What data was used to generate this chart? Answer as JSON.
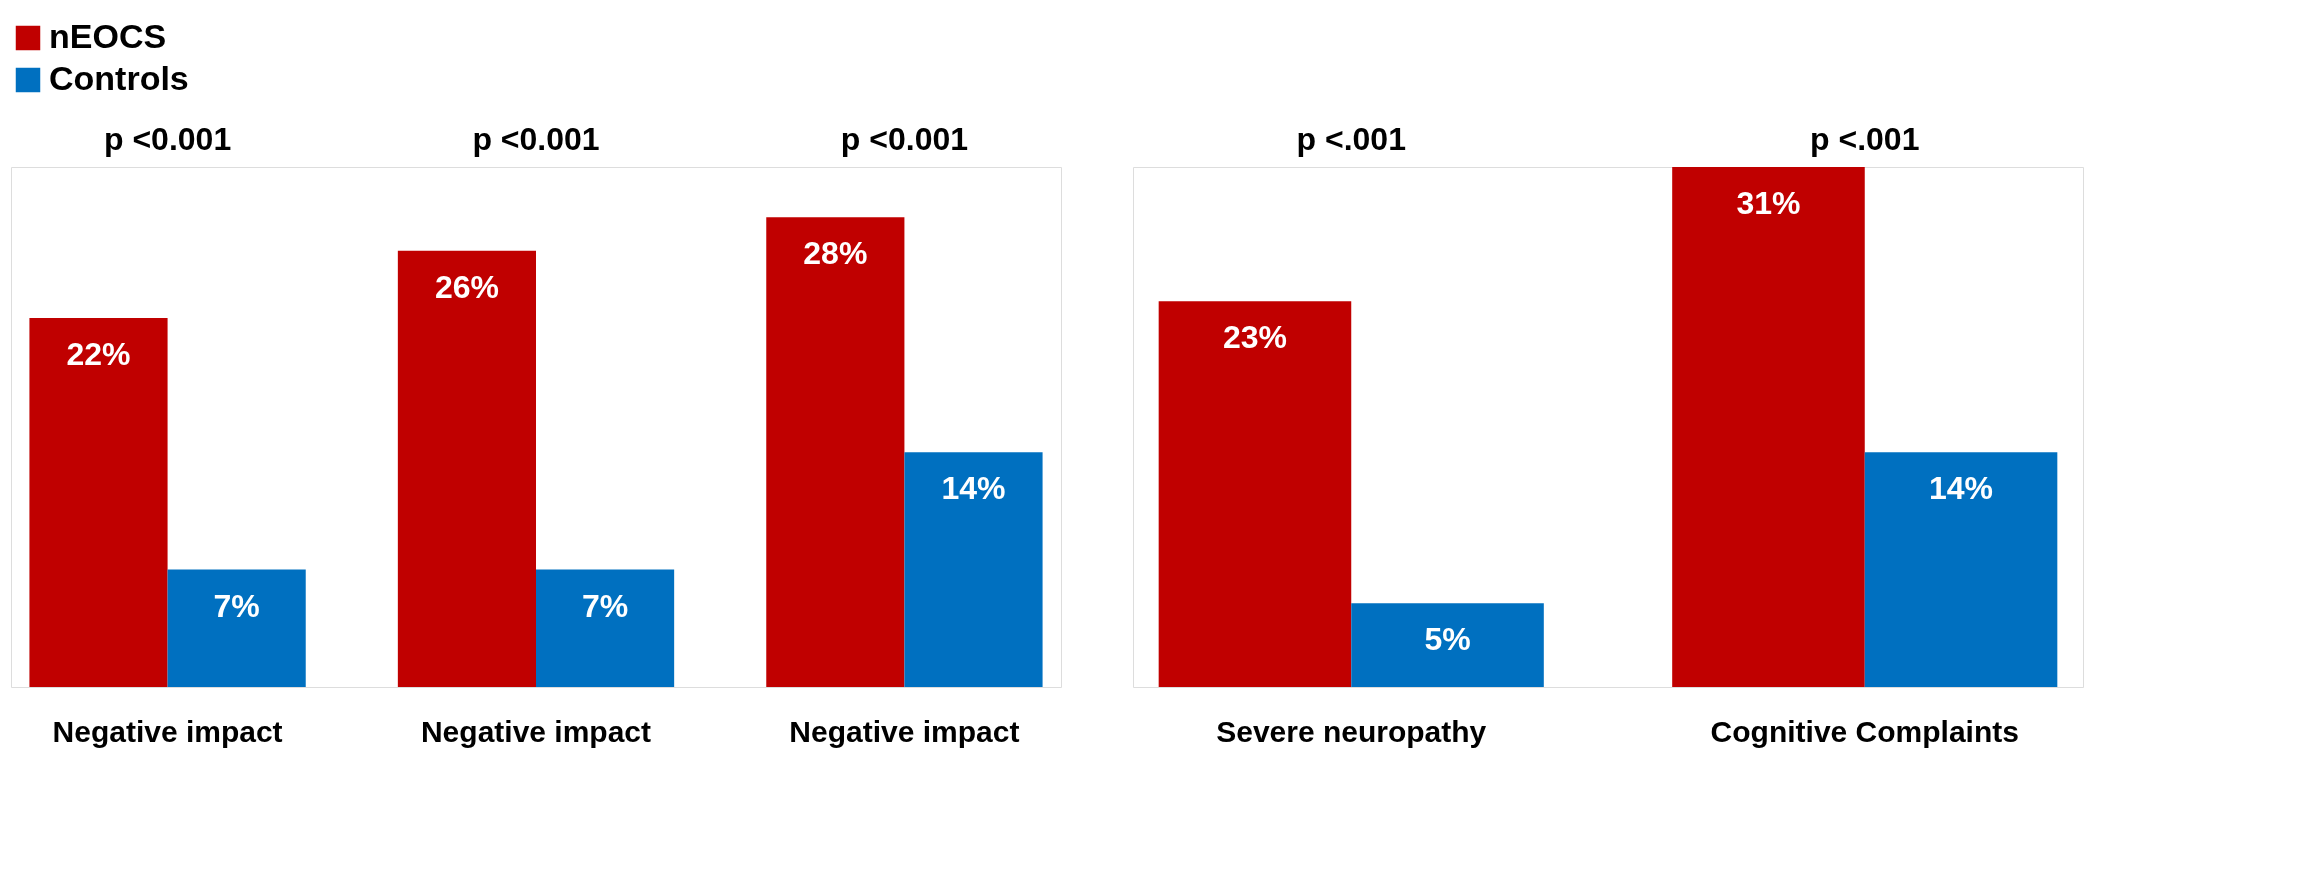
{
  "chart_data": [
    {
      "type": "bar",
      "categories": [
        "Negative impact",
        "Negative impact",
        "Negative impact"
      ],
      "legend": "top left",
      "annotations": [
        "p <0.001",
        "p <0.001",
        "p <0.001"
      ],
      "series": [
        {
          "name": "nEOCS",
          "color": "#c00000",
          "values": [
            22,
            26,
            28
          ],
          "value_labels": [
            "22%",
            "26%",
            "28%"
          ]
        },
        {
          "name": "Controls",
          "color": "#0070c0",
          "values": [
            7,
            7,
            14
          ],
          "value_labels": [
            "7%",
            "7%",
            "14%"
          ]
        }
      ]
    },
    {
      "type": "bar",
      "categories": [
        "Severe neuropathy",
        "Cognitive Complaints"
      ],
      "annotations": [
        "p <.001",
        "p <.001"
      ],
      "series": [
        {
          "color": "#c00000",
          "values": [
            23,
            31
          ],
          "value_labels": [
            "23%",
            "31%"
          ]
        },
        {
          "color": "#0070c0",
          "values": [
            5,
            14
          ],
          "value_labels": [
            "5%",
            "14%"
          ]
        }
      ]
    }
  ]
}
